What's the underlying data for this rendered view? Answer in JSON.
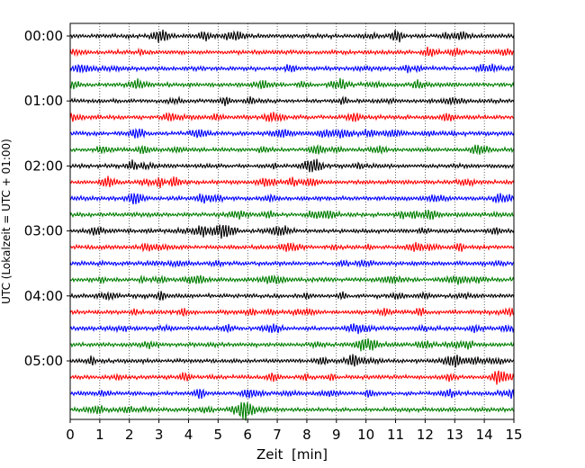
{
  "chart_data": {
    "type": "line",
    "title": "",
    "xlabel": "Zeit  [min]",
    "ylabel": "UTC (Lokalzeit = UTC + 01:00)",
    "xlim": [
      0,
      15
    ],
    "x_ticks": [
      "0",
      "1",
      "2",
      "3",
      "4",
      "5",
      "6",
      "7",
      "8",
      "9",
      "10",
      "11",
      "12",
      "13",
      "14",
      "15"
    ],
    "y_tick_labels": [
      "00:00",
      "01:00",
      "02:00",
      "03:00",
      "04:00",
      "05:00"
    ],
    "traces_per_hour": 4,
    "trace_count": 24,
    "trace_colors": [
      "#000000",
      "#ff0000",
      "#0000ff",
      "#007f00"
    ],
    "grid": "vertical dotted",
    "legend": "none"
  }
}
